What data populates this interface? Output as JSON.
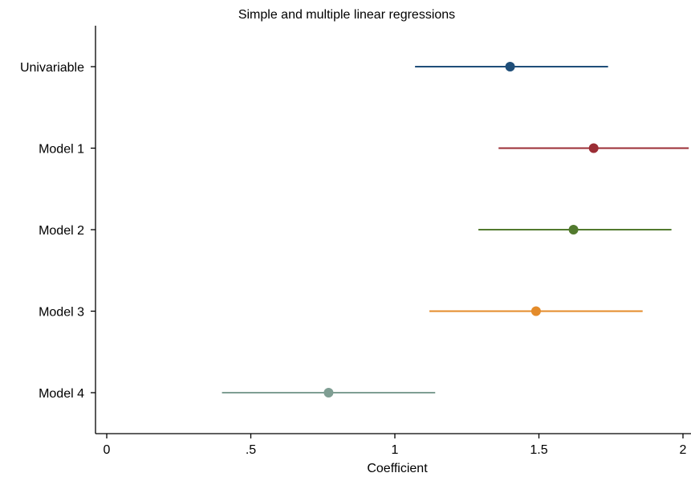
{
  "chart_data": {
    "type": "scatter",
    "subtype": "coefficient-plot",
    "title": "Simple and multiple linear regressions",
    "xlabel": "Coefficient",
    "ylabel": "",
    "xlim": [
      -0.04,
      2.02
    ],
    "x_ticks": [
      {
        "value": 0,
        "label": "0"
      },
      {
        "value": 0.5,
        "label": ".5"
      },
      {
        "value": 1,
        "label": "1"
      },
      {
        "value": 1.5,
        "label": "1.5"
      },
      {
        "value": 2,
        "label": "2"
      }
    ],
    "grid": false,
    "legend": "none",
    "series": [
      {
        "label": "Univariable",
        "estimate": 1.4,
        "ci_low": 1.07,
        "ci_high": 1.74,
        "color": "#1f4e79"
      },
      {
        "label": "Model 1",
        "estimate": 1.69,
        "ci_low": 1.36,
        "ci_high": 2.02,
        "color": "#9b2d35"
      },
      {
        "label": "Model 2",
        "estimate": 1.62,
        "ci_low": 1.29,
        "ci_high": 1.96,
        "color": "#527a2e"
      },
      {
        "label": "Model 3",
        "estimate": 1.49,
        "ci_low": 1.12,
        "ci_high": 1.86,
        "color": "#e48b2a"
      },
      {
        "label": "Model 4",
        "estimate": 0.77,
        "ci_low": 0.4,
        "ci_high": 1.14,
        "color": "#7f9e93"
      }
    ]
  }
}
